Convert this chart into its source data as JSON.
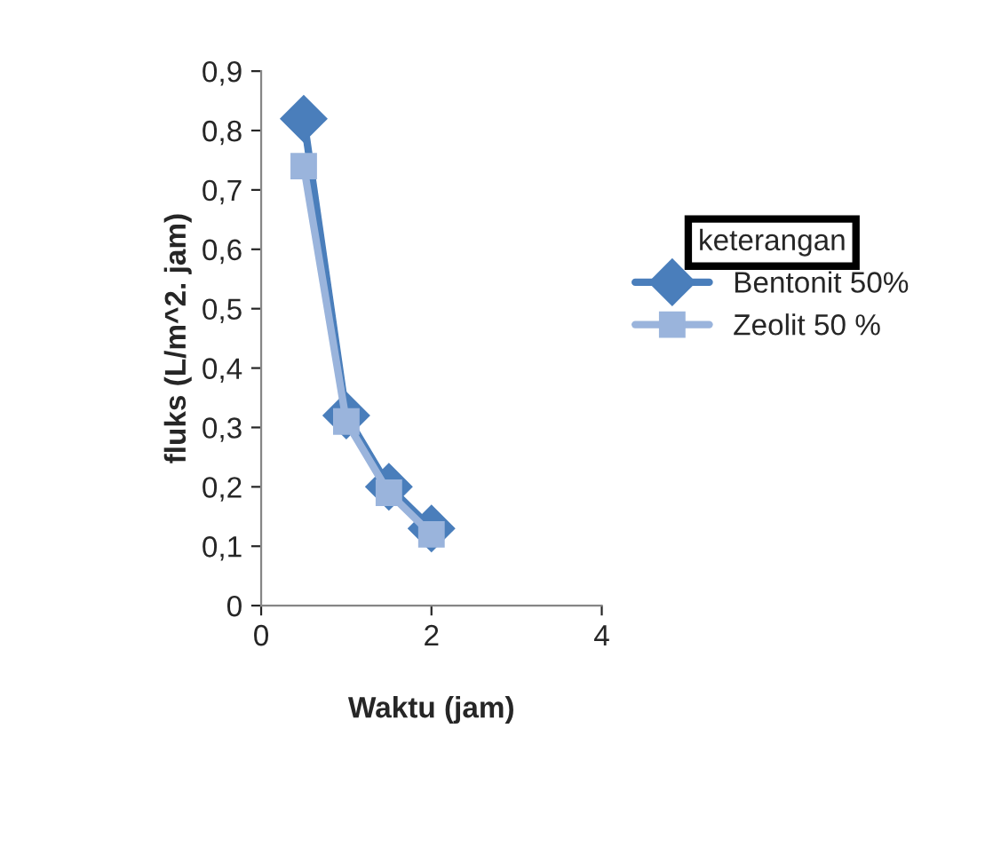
{
  "chart_data": {
    "type": "line",
    "xlabel": "Waktu (jam)",
    "ylabel": "fluks (L/m^2. jam)",
    "legend_title": "keterangan",
    "legend": "right",
    "xlim": [
      0,
      4
    ],
    "xticks": [
      0,
      2,
      4
    ],
    "ylim": [
      0,
      0.9
    ],
    "yticks": [
      0,
      {
        "value": 0.1,
        "label": "0,1"
      },
      {
        "value": 0.2,
        "label": "0,2"
      },
      {
        "value": 0.3,
        "label": "0,3"
      },
      {
        "value": 0.4,
        "label": "0,4"
      },
      {
        "value": 0.5,
        "label": "0,5"
      },
      {
        "value": 0.6,
        "label": "0,6"
      },
      {
        "value": 0.7,
        "label": "0,7"
      },
      {
        "value": 0.8,
        "label": "0,8"
      },
      {
        "value": 0.9,
        "label": "0,9"
      }
    ],
    "grid": false,
    "line_style": "solid",
    "series": [
      {
        "name": "Bentonit 50%",
        "color": "#4a7ebb",
        "marker": "diamond",
        "x": [
          0.5,
          1,
          1.5,
          2
        ],
        "values": [
          0.82,
          0.32,
          0.2,
          0.13
        ]
      },
      {
        "name": "Zeolit 50 %",
        "color": "#9ab4dc",
        "marker": "square",
        "x": [
          0.5,
          1,
          1.5,
          2
        ],
        "values": [
          0.74,
          0.31,
          0.19,
          0.12
        ]
      }
    ]
  }
}
